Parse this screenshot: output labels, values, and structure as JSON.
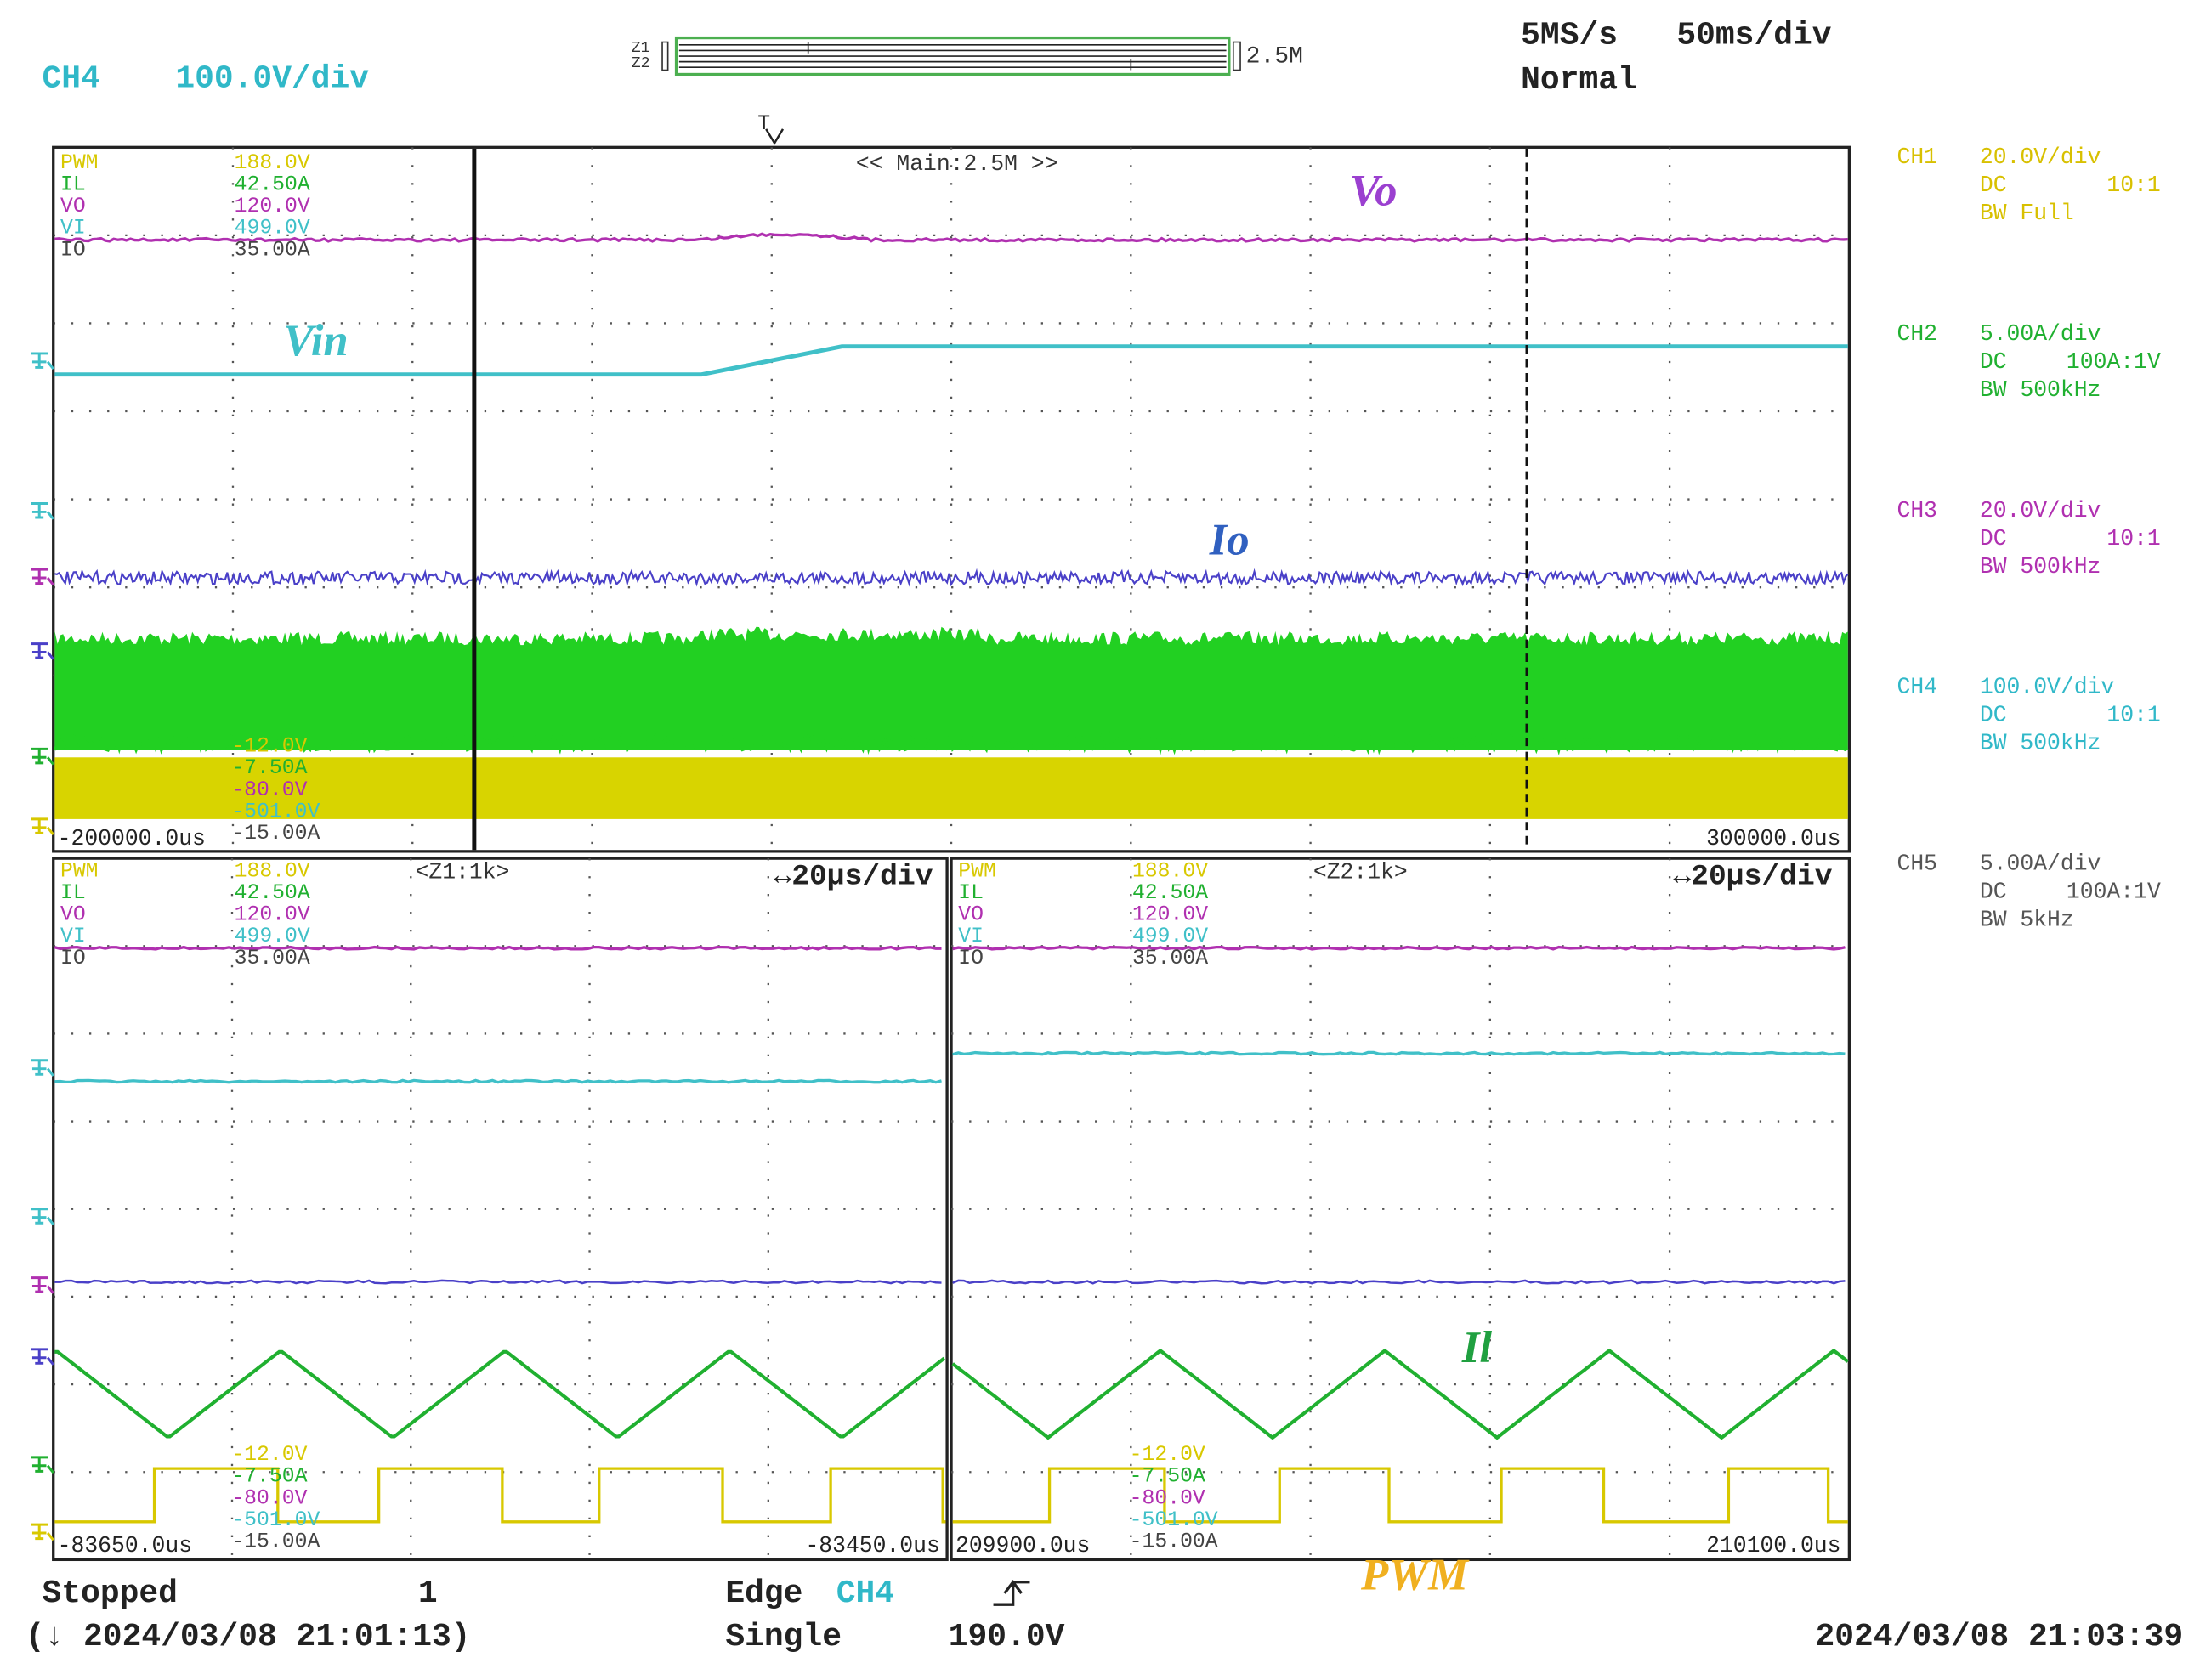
{
  "header": {
    "channel": "CH4",
    "scale": "100.0V/div",
    "zoom_labels": [
      "Z1",
      "Z2"
    ],
    "zoom_rate": "2.5M",
    "sample_rate": "5MS/s",
    "timebase": "50ms/div",
    "mode": "Normal"
  },
  "main": {
    "title": "<< Main:2.5M >>",
    "trigger_marker": "T",
    "start": "-200000.0us",
    "end": "300000.0us"
  },
  "scales": {
    "top": [
      {
        "name": "PWM",
        "value": "188.0V"
      },
      {
        "name": "IL",
        "value": "42.50A"
      },
      {
        "name": "VO",
        "value": "120.0V"
      },
      {
        "name": "VI",
        "value": "499.0V"
      },
      {
        "name": "IO",
        "value": "35.00A"
      }
    ],
    "bottom": [
      "-12.0V",
      "-7.50A",
      "-80.0V",
      "-501.0V",
      "-15.00A"
    ]
  },
  "zoom": [
    {
      "title": "<Z1:1k>",
      "timebase": "↔20µs/div",
      "start": "-83650.0us",
      "end": "-83450.0us"
    },
    {
      "title": "<Z2:1k>",
      "timebase": "↔20µs/div",
      "start": "209900.0us",
      "end": "210100.0us"
    }
  ],
  "annotations": {
    "vo": "Vo",
    "vin": "Vin",
    "io": "Io",
    "il": "Il",
    "pwm": "PWM"
  },
  "channels": [
    {
      "name": "CH1",
      "scale": "20.0V/div",
      "coupling": "DC",
      "probe": "10:1",
      "bandwidth": "BW Full"
    },
    {
      "name": "CH2",
      "scale": "5.00A/div",
      "coupling": "DC",
      "probe": "100A:1V",
      "bandwidth": "BW 500kHz"
    },
    {
      "name": "CH3",
      "scale": "20.0V/div",
      "coupling": "DC",
      "probe": "10:1",
      "bandwidth": "BW 500kHz"
    },
    {
      "name": "CH4",
      "scale": "100.0V/div",
      "coupling": "DC",
      "probe": "10:1",
      "bandwidth": "BW 500kHz"
    },
    {
      "name": "CH5",
      "scale": "5.00A/div",
      "coupling": "DC",
      "probe": "100A:1V",
      "bandwidth": "BW 5kHz"
    }
  ],
  "footer": {
    "state": "Stopped",
    "count": "1",
    "start_time": "(↓ 2024/03/08 21:01:13)",
    "trigger_type": "Edge",
    "trigger_source": "CH4",
    "trigger_mode": "Single",
    "trigger_level": "190.0V",
    "current_time": "2024/03/08 21:03:39"
  }
}
